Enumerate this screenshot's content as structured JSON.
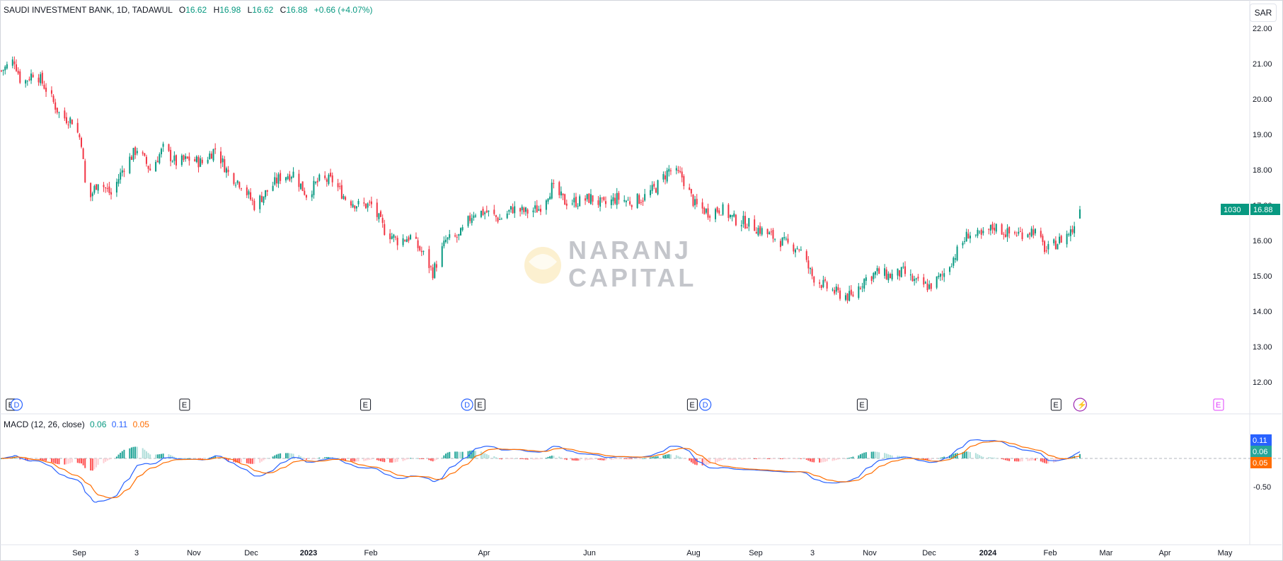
{
  "header": {
    "symbol": "SAUDI INVESTMENT BANK, 1D, TADAWUL",
    "o_label": "O",
    "o": "16.62",
    "h_label": "H",
    "h": "16.98",
    "l_label": "L",
    "l": "16.62",
    "c_label": "C",
    "c": "16.88",
    "change": "+0.66 (+4.07%)"
  },
  "currency": "SAR",
  "watermark": {
    "line1": "NARANJ",
    "line2": "CAPITAL"
  },
  "macd": {
    "title": "MACD (12, 26, close)",
    "hist": "0.06",
    "macd": "0.11",
    "signal": "0.05"
  },
  "colors": {
    "up": "#089981",
    "down": "#f23645",
    "macd": "#2962ff",
    "signal": "#ff6d00",
    "watermark": "#f5c242"
  },
  "chart_data": [
    {
      "type": "candlestick",
      "title": "SAUDI INVESTMENT BANK, 1D, TADAWUL",
      "ylabel": "SAR",
      "ylim": [
        11.5,
        22.3
      ],
      "y_ticks": [
        "22.00",
        "21.00",
        "20.00",
        "19.00",
        "18.00",
        "17.00",
        "16.00",
        "15.00",
        "14.00",
        "13.00",
        "12.00"
      ],
      "x_ticks": [
        "Sep",
        "3",
        "Nov",
        "Dec",
        "2023",
        "Feb",
        "Apr",
        "Jun",
        "Aug",
        "Sep",
        "3",
        "Nov",
        "Dec",
        "2024",
        "Feb",
        "Mar",
        "Apr",
        "May"
      ],
      "last_price_label": "16.88",
      "symbol_code": "1030",
      "close_path": [
        [
          "2022-07-25",
          20.8
        ],
        [
          "2022-08-01",
          21.1
        ],
        [
          "2022-08-05",
          20.4
        ],
        [
          "2022-08-12",
          20.8
        ],
        [
          "2022-08-19",
          20.2
        ],
        [
          "2022-08-26",
          19.5
        ],
        [
          "2022-09-01",
          19.4
        ],
        [
          "2022-09-06",
          18.8
        ],
        [
          "2022-09-09",
          17.0
        ],
        [
          "2022-09-15",
          17.7
        ],
        [
          "2022-09-22",
          17.3
        ],
        [
          "2022-09-29",
          18.1
        ],
        [
          "2022-10-06",
          18.6
        ],
        [
          "2022-10-13",
          18.0
        ],
        [
          "2022-10-20",
          18.6
        ],
        [
          "2022-10-27",
          18.2
        ],
        [
          "2022-11-03",
          18.3
        ],
        [
          "2022-11-10",
          18.2
        ],
        [
          "2022-11-17",
          18.6
        ],
        [
          "2022-11-24",
          17.9
        ],
        [
          "2022-12-01",
          17.6
        ],
        [
          "2022-12-08",
          17.0
        ],
        [
          "2022-12-15",
          17.4
        ],
        [
          "2022-12-22",
          17.8
        ],
        [
          "2022-12-29",
          17.9
        ],
        [
          "2023-01-05",
          17.3
        ],
        [
          "2023-01-12",
          17.7
        ],
        [
          "2023-01-19",
          17.7
        ],
        [
          "2023-01-26",
          17.2
        ],
        [
          "2023-02-02",
          17.0
        ],
        [
          "2023-02-09",
          17.0
        ],
        [
          "2023-02-16",
          16.3
        ],
        [
          "2023-02-23",
          16.0
        ],
        [
          "2023-03-02",
          16.1
        ],
        [
          "2023-03-09",
          15.6
        ],
        [
          "2023-03-14",
          15.1
        ],
        [
          "2023-03-21",
          16.0
        ],
        [
          "2023-03-28",
          16.1
        ],
        [
          "2023-04-05",
          16.8
        ],
        [
          "2023-04-12",
          16.8
        ],
        [
          "2023-04-19",
          16.6
        ],
        [
          "2023-04-26",
          16.9
        ],
        [
          "2023-05-03",
          16.8
        ],
        [
          "2023-05-10",
          16.9
        ],
        [
          "2023-05-17",
          17.5
        ],
        [
          "2023-05-24",
          17.1
        ],
        [
          "2023-05-31",
          17.1
        ],
        [
          "2023-06-07",
          17.2
        ],
        [
          "2023-06-14",
          17.0
        ],
        [
          "2023-06-21",
          17.2
        ],
        [
          "2023-06-28",
          17.1
        ],
        [
          "2023-07-05",
          17.2
        ],
        [
          "2023-07-12",
          17.5
        ],
        [
          "2023-07-19",
          18.0
        ],
        [
          "2023-07-26",
          17.8
        ],
        [
          "2023-08-02",
          17.0
        ],
        [
          "2023-08-09",
          16.8
        ],
        [
          "2023-08-16",
          16.9
        ],
        [
          "2023-08-23",
          16.6
        ],
        [
          "2023-08-30",
          16.5
        ],
        [
          "2023-09-06",
          16.3
        ],
        [
          "2023-09-13",
          16.1
        ],
        [
          "2023-09-20",
          15.9
        ],
        [
          "2023-09-27",
          15.8
        ],
        [
          "2023-10-04",
          15.0
        ],
        [
          "2023-10-11",
          14.7
        ],
        [
          "2023-10-18",
          14.5
        ],
        [
          "2023-10-25",
          14.4
        ],
        [
          "2023-11-01",
          14.9
        ],
        [
          "2023-11-08",
          15.1
        ],
        [
          "2023-11-15",
          15.0
        ],
        [
          "2023-11-22",
          15.1
        ],
        [
          "2023-11-29",
          14.8
        ],
        [
          "2023-12-06",
          14.7
        ],
        [
          "2023-12-13",
          15.0
        ],
        [
          "2023-12-20",
          15.6
        ],
        [
          "2023-12-27",
          16.2
        ],
        [
          "2024-01-03",
          16.1
        ],
        [
          "2024-01-10",
          16.4
        ],
        [
          "2024-01-17",
          16.2
        ],
        [
          "2024-01-24",
          16.2
        ],
        [
          "2024-01-31",
          16.3
        ],
        [
          "2024-02-07",
          15.7
        ],
        [
          "2024-02-14",
          16.0
        ],
        [
          "2024-02-21",
          16.3
        ],
        [
          "2024-02-25",
          16.88
        ]
      ],
      "events": [
        {
          "label": "E",
          "date": "2022-07-26"
        },
        {
          "label": "D",
          "date": "2022-07-29"
        },
        {
          "label": "E",
          "date": "2022-10-28"
        },
        {
          "label": "E",
          "date": "2023-02-03"
        },
        {
          "label": "D",
          "date": "2023-03-30"
        },
        {
          "label": "E",
          "date": "2023-04-06"
        },
        {
          "label": "E",
          "date": "2023-07-30"
        },
        {
          "label": "D",
          "date": "2023-08-06"
        },
        {
          "label": "E",
          "date": "2023-10-30"
        },
        {
          "label": "E",
          "date": "2024-02-12"
        },
        {
          "label": "⚡",
          "date": "2024-02-25"
        },
        {
          "label": "E",
          "date": "2024-05-10"
        }
      ]
    },
    {
      "type": "line",
      "title": "MACD (12, 26, close)",
      "y_ticks": [
        "-0.50"
      ],
      "series": [
        {
          "name": "MACD",
          "last": 0.11
        },
        {
          "name": "Signal",
          "last": 0.05
        },
        {
          "name": "Histogram",
          "last": 0.06
        }
      ]
    }
  ]
}
